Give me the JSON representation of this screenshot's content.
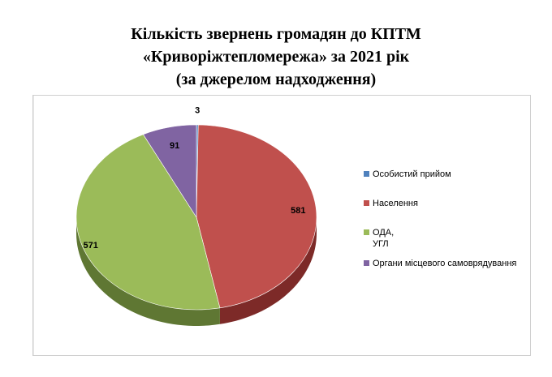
{
  "chart_data": {
    "type": "pie",
    "title_lines": [
      "Кількість  звернень  громадян до КПТМ",
      "«Криворіжтепломережа»  за 2021 рік",
      "(за джерелом надходження)"
    ],
    "legend_position": "right",
    "slices": [
      {
        "label": "Особистий прийом",
        "value": 3,
        "display": "3",
        "color": "#4f81bd",
        "side": "#2d4e77"
      },
      {
        "label": "Населення",
        "value": 581,
        "display": "581",
        "color": "#c0504d",
        "side": "#7d2a28"
      },
      {
        "label": "ОДА,\nУГЛ",
        "value": 571,
        "display": "571",
        "color": "#9bbb59",
        "side": "#5f7733"
      },
      {
        "label": "Органи місцевого самоврядування",
        "value": 91,
        "display": "91",
        "color": "#8064a2",
        "side": "#4f3c66"
      }
    ]
  }
}
